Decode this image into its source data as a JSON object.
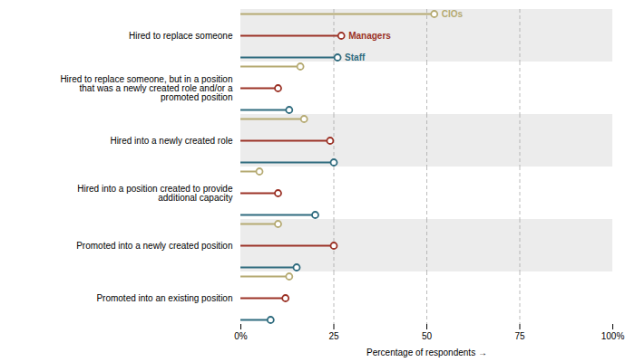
{
  "chart_data": {
    "type": "lollipop",
    "orientation": "horizontal",
    "categories": [
      "Hired to replace someone",
      "Hired to replace someone, but in a position\nthat was a newly created role and/or a\npromoted position",
      "Hired into a newly created role",
      "Hired into a position created to provide\nadditional capacity",
      "Promoted into a newly created position",
      "Promoted into an existing position"
    ],
    "series": [
      {
        "name": "CIOs",
        "color": "#b5aa72",
        "values": [
          52,
          16,
          17,
          5,
          10,
          13
        ]
      },
      {
        "name": "Managers",
        "color": "#9b3226",
        "values": [
          27,
          10,
          24,
          10,
          25,
          12
        ]
      },
      {
        "name": "Staff",
        "color": "#2e6b7e",
        "values": [
          26,
          13,
          25,
          20,
          15,
          8
        ]
      }
    ],
    "xlabel": "Percentage of respondents",
    "xlim": [
      0,
      100
    ],
    "xticks": [
      {
        "value": 0,
        "label": "0%"
      },
      25,
      50,
      75,
      {
        "value": 100,
        "label": "100%"
      }
    ],
    "grid": true
  }
}
